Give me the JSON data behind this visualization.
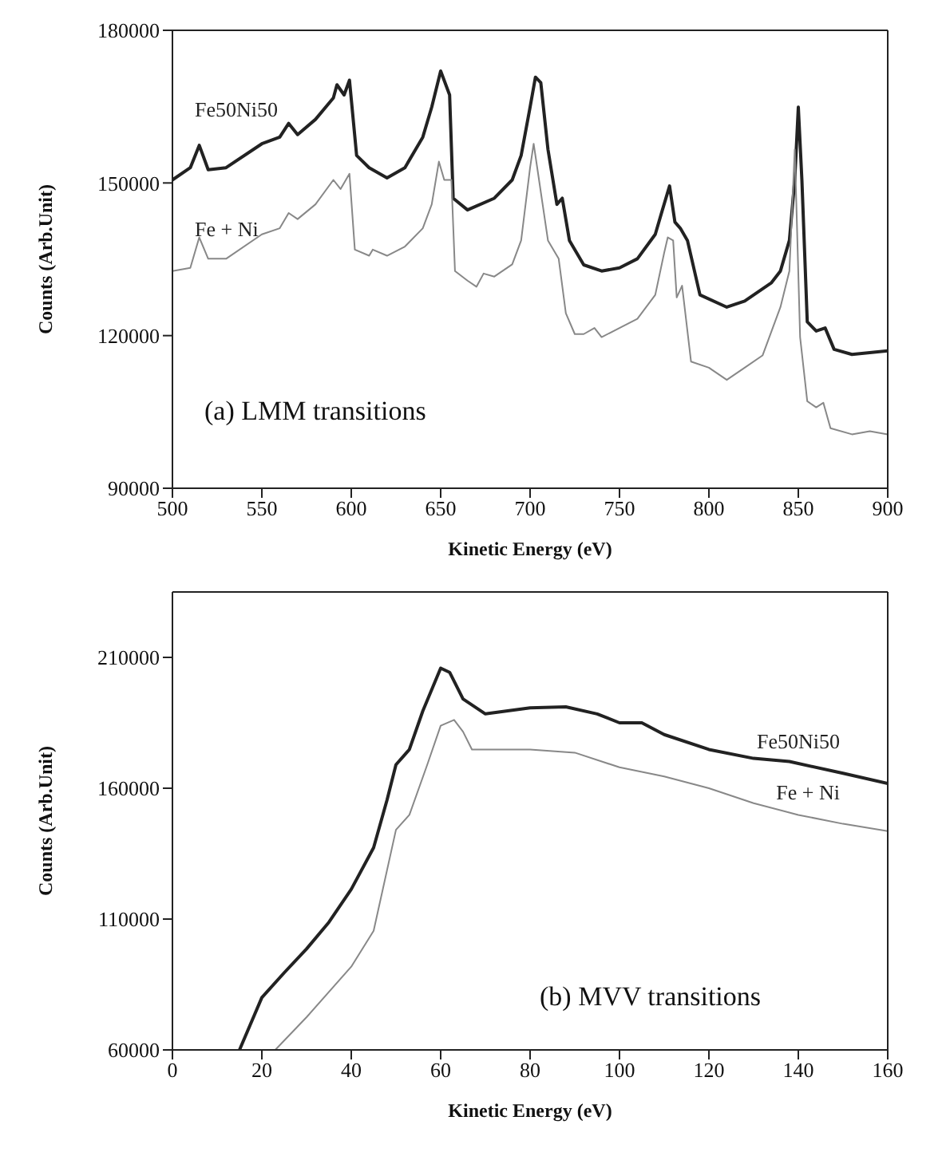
{
  "chart_data": [
    {
      "type": "line",
      "xlabel": "Kinetic Energy (eV)",
      "ylabel": "Counts (Arb.Unit)",
      "annotations": [
        "(a) LMM transitions"
      ],
      "xlim": [
        500,
        900
      ],
      "xticks": [
        500,
        550,
        600,
        650,
        700,
        750,
        800,
        850,
        900
      ],
      "ylim": [
        90000,
        180000
      ],
      "yticks": [
        90000,
        120000,
        150000,
        180000
      ],
      "grid": false,
      "legend": false,
      "marker": "none",
      "line_style": "solid",
      "series": [
        {
          "name": "Fe50Ni50",
          "color": "#222222",
          "x": [
            500,
            510,
            515,
            520,
            530,
            550,
            560,
            565,
            570,
            580,
            590,
            592,
            596,
            599,
            603,
            610,
            620,
            630,
            640,
            645,
            650,
            655,
            657,
            665,
            680,
            690,
            695,
            700,
            703,
            706,
            710,
            715,
            718,
            722,
            730,
            740,
            750,
            760,
            770,
            774,
            778,
            781,
            784,
            788,
            795,
            810,
            820,
            835,
            840,
            845,
            848,
            850,
            852,
            855,
            860,
            865,
            870,
            880,
            900
          ],
          "values": [
            150600,
            153000,
            157400,
            152600,
            153000,
            157700,
            159000,
            161700,
            159500,
            162500,
            166700,
            169300,
            167300,
            170200,
            155400,
            153000,
            151000,
            153000,
            159000,
            164900,
            172000,
            167300,
            147000,
            144700,
            147000,
            150600,
            155400,
            164900,
            170800,
            169700,
            156600,
            145800,
            147000,
            138700,
            133900,
            132700,
            133300,
            135100,
            139900,
            144700,
            149400,
            142300,
            141100,
            138700,
            128000,
            125600,
            126800,
            130400,
            132700,
            138700,
            150600,
            164900,
            150600,
            122700,
            120900,
            121500,
            117300,
            116300,
            117000
          ]
        },
        {
          "name": "Fe + Ni",
          "color": "#888888",
          "x": [
            500,
            510,
            515,
            520,
            530,
            550,
            560,
            565,
            570,
            580,
            590,
            594,
            599,
            602,
            610,
            612,
            620,
            630,
            640,
            645,
            649,
            652,
            656,
            658,
            665,
            670,
            674,
            680,
            690,
            695,
            700,
            702,
            705,
            710,
            716,
            720,
            725,
            730,
            736,
            740,
            750,
            760,
            770,
            775,
            777,
            780,
            782,
            785,
            790,
            800,
            810,
            820,
            830,
            840,
            845,
            848,
            849,
            851,
            855,
            860,
            864,
            868,
            880,
            890,
            900
          ],
          "values": [
            132700,
            133300,
            139300,
            135100,
            135100,
            139900,
            141100,
            144100,
            142900,
            145800,
            150600,
            148800,
            151800,
            136900,
            135700,
            136900,
            135700,
            137500,
            141100,
            145800,
            154200,
            150600,
            150600,
            132700,
            130800,
            129600,
            132200,
            131600,
            134000,
            138700,
            153000,
            157700,
            150600,
            138700,
            135100,
            124400,
            120300,
            120300,
            121500,
            119700,
            121500,
            123300,
            128000,
            136300,
            139300,
            138700,
            127500,
            129800,
            114900,
            113700,
            111300,
            113700,
            116100,
            125600,
            132700,
            156600,
            144700,
            119700,
            107100,
            105900,
            106800,
            101800,
            100600,
            101200,
            100600
          ]
        }
      ]
    },
    {
      "type": "line",
      "xlabel": "Kinetic Energy (eV)",
      "ylabel": "Counts (Arb.Unit)",
      "annotations": [
        "(b) MVV transitions"
      ],
      "xlim": [
        0,
        160
      ],
      "xticks": [
        0,
        20,
        40,
        60,
        80,
        100,
        120,
        140,
        160
      ],
      "ylim": [
        60000,
        235000
      ],
      "yticks": [
        60000,
        110000,
        160000,
        210000
      ],
      "grid": false,
      "legend": false,
      "marker": "none",
      "line_style": "solid",
      "series": [
        {
          "name": "Fe50Ni50",
          "color": "#222222",
          "x": [
            15,
            20,
            25,
            30,
            35,
            40,
            45,
            48,
            50,
            53,
            56,
            60,
            62,
            65,
            70,
            80,
            88,
            95,
            100,
            105,
            110,
            120,
            130,
            138,
            150,
            160
          ],
          "values": [
            60000,
            80000,
            89500,
            98600,
            108800,
            121400,
            137300,
            155500,
            169000,
            174800,
            189500,
            205900,
            204300,
            194100,
            188400,
            190700,
            191100,
            188400,
            185000,
            185000,
            180500,
            174800,
            171400,
            170200,
            165700,
            161800
          ]
        },
        {
          "name": "Fe + Ni",
          "color": "#888888",
          "x": [
            23,
            30,
            40,
            45,
            50,
            53,
            57,
            60,
            63,
            65,
            67,
            80,
            90,
            100,
            110,
            120,
            130,
            140,
            150,
            160
          ],
          "values": [
            60000,
            72500,
            91800,
            105500,
            144100,
            149800,
            169000,
            183900,
            186100,
            181600,
            174800,
            174800,
            173600,
            168000,
            164500,
            160000,
            154300,
            149800,
            146400,
            143600
          ]
        }
      ]
    }
  ]
}
